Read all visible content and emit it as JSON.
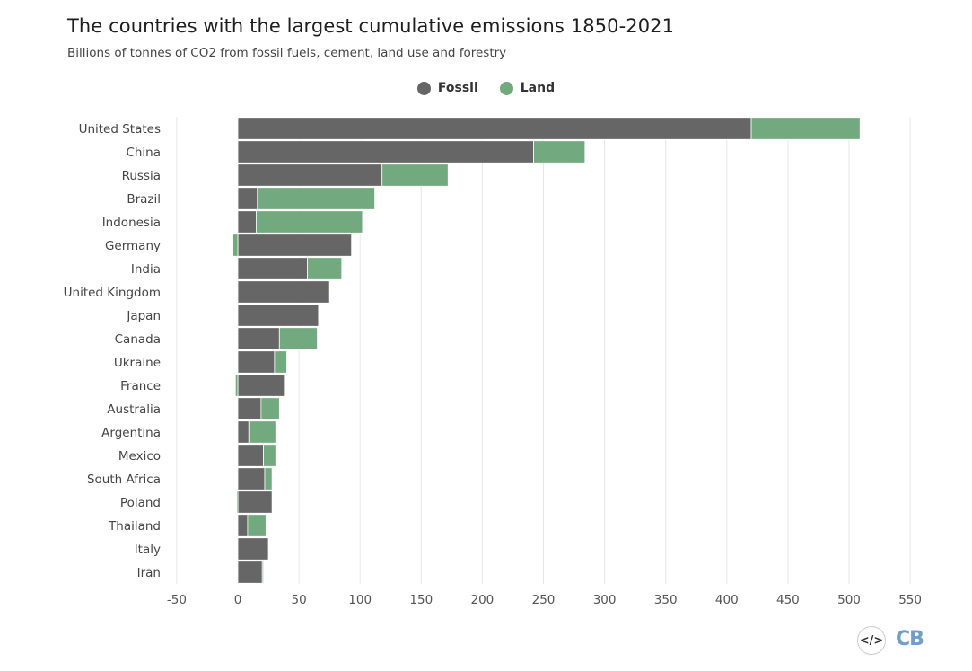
{
  "header": {
    "title": "The countries with the largest cumulative emissions 1850-2021",
    "subtitle": "Billions of tonnes of CO2 from fossil fuels, cement, land use and forestry"
  },
  "colors": {
    "fossil": "#666666",
    "land": "#72a97e",
    "grid": "#e6e6e6"
  },
  "logos": {
    "code": "</>",
    "cb": "CB"
  },
  "chart_data": {
    "type": "bar",
    "orientation": "horizontal",
    "stacked": true,
    "title": "The countries with the largest cumulative emissions 1850-2021",
    "subtitle": "Billions of tonnes of CO2 from fossil fuels, cement, land use and forestry",
    "legend_position": "top-center",
    "grid": true,
    "xlim": [
      -50,
      550
    ],
    "x_ticks": [
      -50,
      0,
      50,
      100,
      150,
      200,
      250,
      300,
      350,
      400,
      450,
      500,
      550
    ],
    "categories": [
      "United States",
      "China",
      "Russia",
      "Brazil",
      "Indonesia",
      "Germany",
      "India",
      "United Kingdom",
      "Japan",
      "Canada",
      "Ukraine",
      "France",
      "Australia",
      "Argentina",
      "Mexico",
      "South Africa",
      "Poland",
      "Thailand",
      "Italy",
      "Iran"
    ],
    "series": [
      {
        "name": "Fossil",
        "values": [
          420,
          242,
          118,
          16,
          15,
          93,
          57,
          75,
          66,
          34,
          30,
          38,
          19,
          9,
          21,
          22,
          28,
          8,
          25,
          20
        ]
      },
      {
        "name": "Land",
        "values": [
          89,
          42,
          54,
          96,
          87,
          -4,
          28,
          0,
          0,
          31,
          10,
          -2,
          15,
          22,
          10,
          6,
          -1,
          15,
          0,
          1
        ]
      }
    ]
  }
}
